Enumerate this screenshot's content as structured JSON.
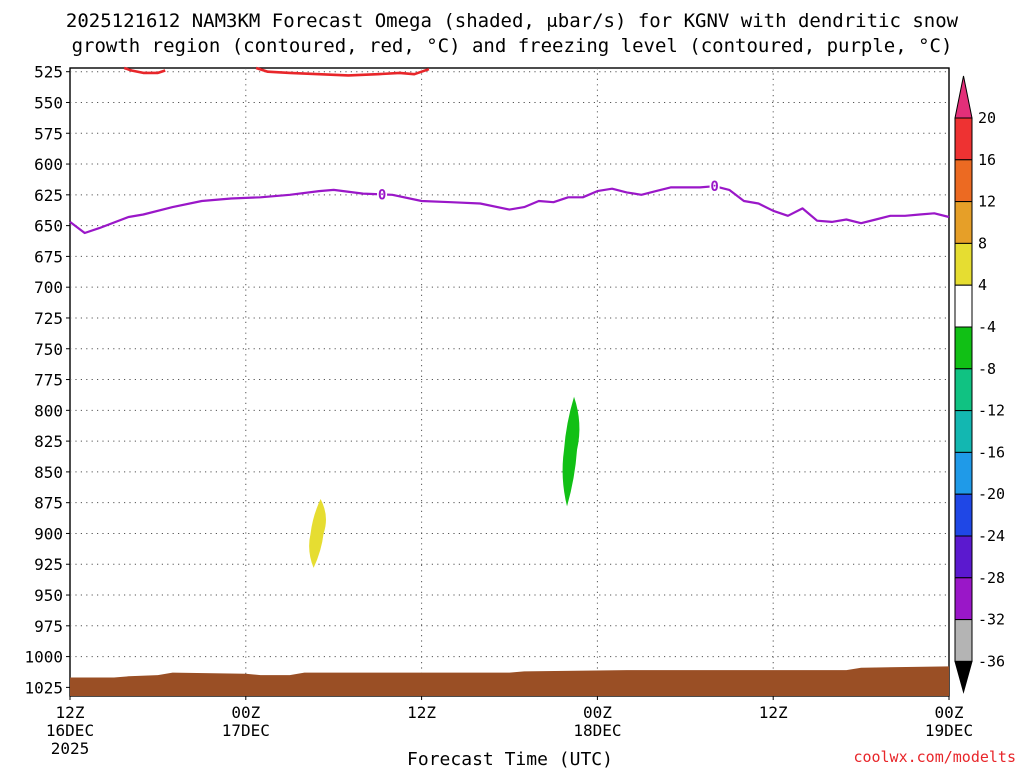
{
  "chart_data": {
    "type": "contour",
    "title": "2025121612 NAM3KM Forecast Omega (shaded, μbar/s) for KGNV with dendritic snow",
    "subtitle": "growth region (contoured, red, °C) and freezing level (contoured, purple, °C)",
    "xlabel": "Forecast Time (UTC)",
    "credit": "coolwx.com/modelts",
    "x_range_hours": [
      0,
      60
    ],
    "y_range_mb": [
      522,
      1032
    ],
    "x_ticks": [
      {
        "hour": 0,
        "line1": "12Z",
        "line2": "16DEC",
        "line3": "2025"
      },
      {
        "hour": 12,
        "line1": "00Z",
        "line2": "17DEC",
        "line3": ""
      },
      {
        "hour": 24,
        "line1": "12Z",
        "line2": "",
        "line3": ""
      },
      {
        "hour": 36,
        "line1": "00Z",
        "line2": "18DEC",
        "line3": ""
      },
      {
        "hour": 48,
        "line1": "12Z",
        "line2": "",
        "line3": ""
      },
      {
        "hour": 60,
        "line1": "00Z",
        "line2": "19DEC",
        "line3": ""
      }
    ],
    "y_ticks": [
      "525",
      "550",
      "575",
      "600",
      "625",
      "650",
      "675",
      "700",
      "725",
      "750",
      "775",
      "800",
      "825",
      "850",
      "875",
      "900",
      "925",
      "950",
      "975",
      "1000",
      "1025"
    ],
    "grid": true,
    "freezing_level": {
      "label": "0",
      "color": "#9a17c8",
      "label_hours": [
        21.3,
        44.0
      ],
      "points": [
        [
          0,
          647
        ],
        [
          1,
          656
        ],
        [
          2,
          652
        ],
        [
          4,
          643
        ],
        [
          5,
          641
        ],
        [
          7,
          635
        ],
        [
          9,
          630
        ],
        [
          11,
          628
        ],
        [
          13,
          627
        ],
        [
          15,
          625
        ],
        [
          17,
          622
        ],
        [
          18,
          621
        ],
        [
          20,
          624
        ],
        [
          22,
          625
        ],
        [
          24,
          630
        ],
        [
          26,
          631
        ],
        [
          28,
          632
        ],
        [
          30,
          637
        ],
        [
          31,
          635
        ],
        [
          32,
          630
        ],
        [
          33,
          631
        ],
        [
          34,
          627
        ],
        [
          35,
          627
        ],
        [
          36,
          622
        ],
        [
          37,
          620
        ],
        [
          38,
          623
        ],
        [
          39,
          625
        ],
        [
          40,
          622
        ],
        [
          41,
          619
        ],
        [
          43,
          619
        ],
        [
          44,
          618
        ],
        [
          45,
          621
        ],
        [
          46,
          630
        ],
        [
          47,
          632
        ],
        [
          48,
          638
        ],
        [
          49,
          642
        ],
        [
          50,
          636
        ],
        [
          51,
          646
        ],
        [
          52,
          647
        ],
        [
          53,
          645
        ],
        [
          54,
          648
        ],
        [
          55,
          645
        ],
        [
          56,
          642
        ],
        [
          57,
          642
        ],
        [
          58,
          641
        ],
        [
          59,
          640
        ],
        [
          60,
          643
        ]
      ]
    },
    "dgz_contours": [
      {
        "color": "#e8262a",
        "points": [
          [
            3.7,
            522
          ],
          [
            4.2,
            524
          ],
          [
            5,
            526
          ],
          [
            6,
            526
          ],
          [
            6.5,
            524
          ]
        ]
      },
      {
        "color": "#e8262a",
        "points": [
          [
            12.7,
            522
          ],
          [
            13.5,
            525
          ],
          [
            15,
            526
          ],
          [
            17,
            527
          ],
          [
            19,
            528
          ],
          [
            21,
            527
          ],
          [
            22.5,
            526
          ],
          [
            23.5,
            527
          ],
          [
            24,
            525
          ],
          [
            24.5,
            523
          ]
        ]
      }
    ],
    "omega_blobs": [
      {
        "color": "#e6dd31",
        "center_hour": 16.9,
        "center_mb": 900,
        "top_mb": 872,
        "bottom_mb": 928
      },
      {
        "color": "#11c015",
        "center_hour": 34.2,
        "center_mb": 832,
        "top_mb": 789,
        "bottom_mb": 878
      }
    ],
    "terrain": {
      "color": "#9a4f25",
      "points": [
        [
          0,
          1017
        ],
        [
          3,
          1017
        ],
        [
          4,
          1016
        ],
        [
          6,
          1015
        ],
        [
          7,
          1013
        ],
        [
          12,
          1014
        ],
        [
          13,
          1015
        ],
        [
          15,
          1015
        ],
        [
          16,
          1013
        ],
        [
          30,
          1013
        ],
        [
          31,
          1012
        ],
        [
          38,
          1011
        ],
        [
          53,
          1011
        ],
        [
          54,
          1009
        ],
        [
          60,
          1008
        ]
      ]
    },
    "colorbar": {
      "labels": [
        "20",
        "16",
        "12",
        "8",
        "4",
        "-4",
        "-8",
        "-12",
        "-16",
        "-20",
        "-24",
        "-28",
        "-32",
        "-36"
      ],
      "colors": [
        "#e32f79",
        "#ee3232",
        "#ec6a22",
        "#e69f28",
        "#e6dd31",
        "#ffffff",
        "#11c015",
        "#10c282",
        "#13b7b1",
        "#1f9ae8",
        "#1f47e6",
        "#5b19cf",
        "#9a17c8",
        "#b4b4b4",
        "#000000"
      ]
    }
  }
}
